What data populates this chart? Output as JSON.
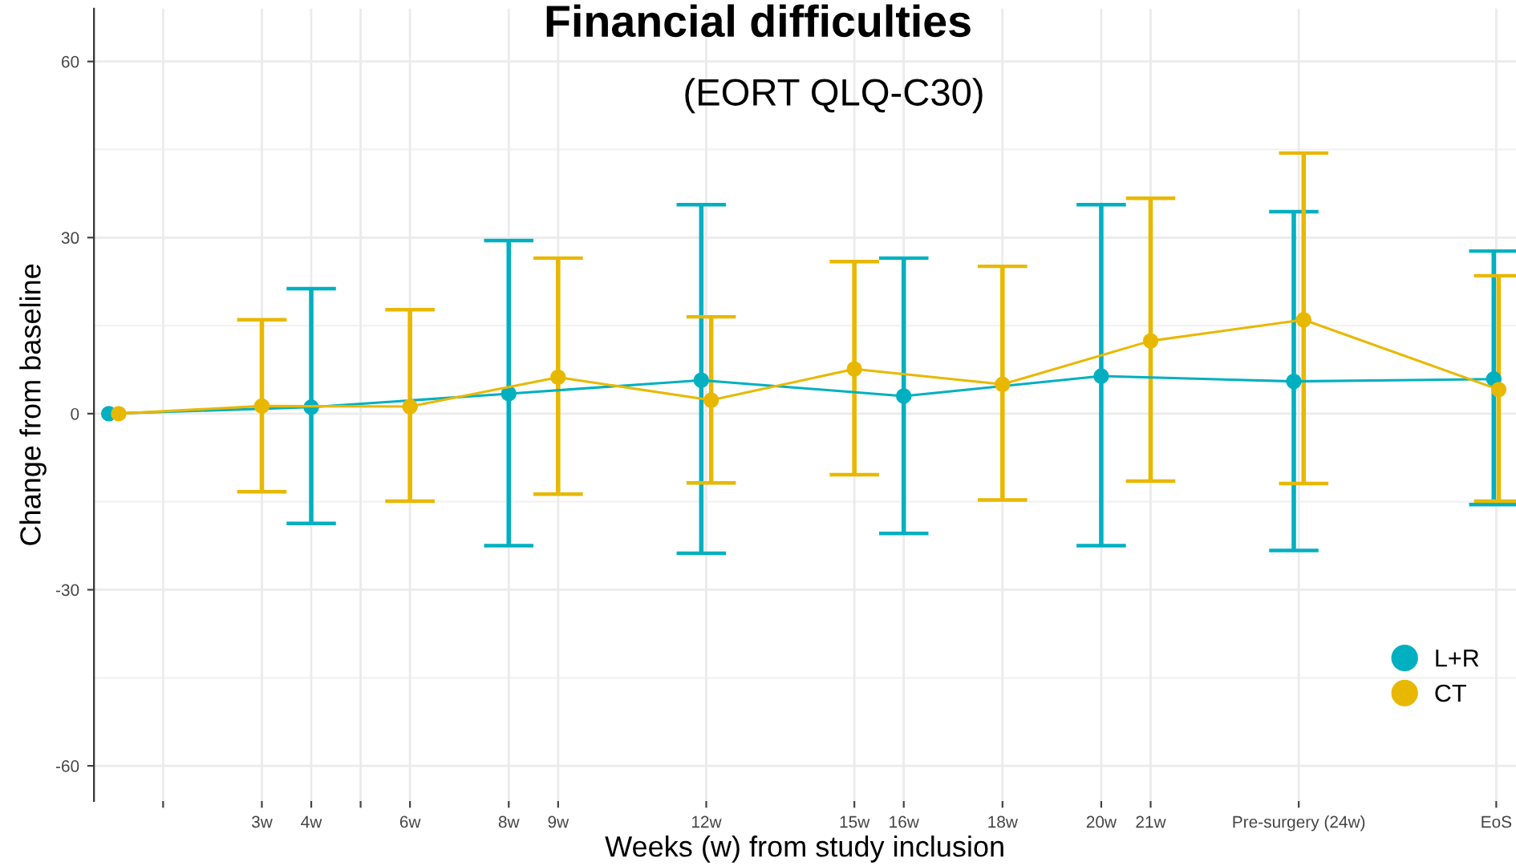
{
  "chart_data": {
    "type": "line",
    "title": "Financial difficulties",
    "subtitle": "(EORT QLQ-C30)",
    "xlabel": "Weeks (w) from study inclusion",
    "ylabel": "Change from baseline",
    "xlim": [
      -0.4,
      28.4
    ],
    "xticks": [
      {
        "value": 1,
        "label": null
      },
      {
        "value": 3,
        "label": "3w"
      },
      {
        "value": 4,
        "label": "4w"
      },
      {
        "value": 5,
        "label": null
      },
      {
        "value": 6,
        "label": "6w"
      },
      {
        "value": 8,
        "label": "8w"
      },
      {
        "value": 9,
        "label": "9w"
      },
      {
        "value": 12,
        "label": "12w"
      },
      {
        "value": 15,
        "label": "15w"
      },
      {
        "value": 16,
        "label": "16w"
      },
      {
        "value": 18,
        "label": "18w"
      },
      {
        "value": 20,
        "label": "20w"
      },
      {
        "value": 21,
        "label": "21w"
      },
      {
        "value": 24,
        "label": "Pre-surgery (24w)"
      },
      {
        "value": 28,
        "label": "EoS"
      }
    ],
    "ylim": [
      -66,
      69
    ],
    "yticks": [
      -60,
      -30,
      0,
      30,
      60
    ],
    "grid": true,
    "legend": "bottom right",
    "marker": "circle",
    "line_style": "solid",
    "series": [
      {
        "name": "L+R",
        "color": "#00b0c0",
        "x": [
          -0.1,
          4,
          8,
          11.9,
          16,
          20,
          23.9,
          27.95
        ],
        "values": [
          0,
          1.1,
          3.4,
          5.7,
          3.0,
          6.4,
          5.5,
          5.9
        ],
        "errors": [
          null,
          [
            -18.7,
            21.3
          ],
          [
            -22.5,
            29.5
          ],
          [
            -23.8,
            35.6
          ],
          [
            -20.4,
            26.5
          ],
          [
            -22.5,
            35.6
          ],
          [
            -23.3,
            34.4
          ],
          [
            -15.5,
            27.7
          ]
        ]
      },
      {
        "name": "CT",
        "color": "#e8b800",
        "x": [
          0.1,
          3,
          6,
          9,
          12.1,
          15,
          18,
          21,
          24.1,
          28.05
        ],
        "values": [
          0,
          1.3,
          1.2,
          6.2,
          2.3,
          7.6,
          5.0,
          12.4,
          16.0,
          4.1
        ],
        "errors": [
          null,
          [
            -13.3,
            16.0
          ],
          [
            -14.9,
            17.7
          ],
          [
            -13.7,
            26.5
          ],
          [
            -11.8,
            16.5
          ],
          [
            -10.4,
            25.9
          ],
          [
            -14.7,
            25.1
          ],
          [
            -11.5,
            36.7
          ],
          [
            -11.9,
            44.4
          ],
          [
            -14.9,
            23.5
          ]
        ]
      }
    ]
  }
}
